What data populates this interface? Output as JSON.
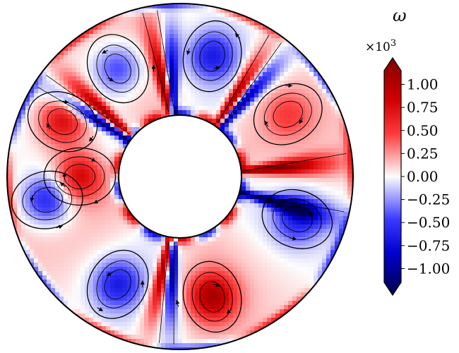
{
  "chart_data": {
    "type": "heatmap",
    "field": "vorticity",
    "overlay": "streamlines",
    "domain_shape": "annulus",
    "outer_radius": 1.0,
    "inner_radius": 0.35,
    "colormap": "seismic",
    "colorbar": {
      "title": "ω",
      "multiplier_prefix": "×10",
      "multiplier_exponent": "3",
      "range": [
        -1.15,
        1.15
      ],
      "extend": "both",
      "placement": "right",
      "ticks": [
        1.0,
        0.75,
        0.5,
        0.25,
        0.0,
        -0.25,
        -0.5,
        -0.75,
        -1.0
      ],
      "tick_labels": [
        "1.00",
        "0.75",
        "0.50",
        "0.25",
        "0.00",
        "−0.25",
        "−0.50",
        "−0.75",
        "−1.00"
      ]
    },
    "vortex_cells": [
      {
        "angle_deg": 155,
        "radius": 0.75,
        "sign": 1,
        "strength": 0.7
      },
      {
        "angle_deg": 120,
        "radius": 0.72,
        "sign": -1,
        "strength": 0.5
      },
      {
        "angle_deg": 75,
        "radius": 0.72,
        "sign": -1,
        "strength": 0.6
      },
      {
        "angle_deg": 30,
        "radius": 0.72,
        "sign": 1,
        "strength": 0.35
      },
      {
        "angle_deg": -20,
        "radius": 0.72,
        "sign": -1,
        "strength": 0.55
      },
      {
        "angle_deg": -75,
        "radius": 0.72,
        "sign": 1,
        "strength": 0.85
      },
      {
        "angle_deg": -120,
        "radius": 0.72,
        "sign": -1,
        "strength": 0.6
      },
      {
        "angle_deg": -170,
        "radius": 0.78,
        "sign": -1,
        "strength": 0.65
      },
      {
        "angle_deg": 180,
        "radius": 0.58,
        "sign": 1,
        "strength": 0.7
      }
    ],
    "shear_bands": [
      {
        "angle_deg": 95,
        "sign": -1
      },
      {
        "angle_deg": 100,
        "sign": 1
      },
      {
        "angle_deg": 55,
        "sign": 1
      },
      {
        "angle_deg": 50,
        "sign": -1
      },
      {
        "angle_deg": 5,
        "sign": 1
      },
      {
        "angle_deg": -15,
        "sign": -1
      },
      {
        "angle_deg": -95,
        "sign": -1
      },
      {
        "angle_deg": -100,
        "sign": 1
      },
      {
        "angle_deg": 140,
        "sign": 1
      },
      {
        "angle_deg": 145,
        "sign": -1
      }
    ]
  }
}
